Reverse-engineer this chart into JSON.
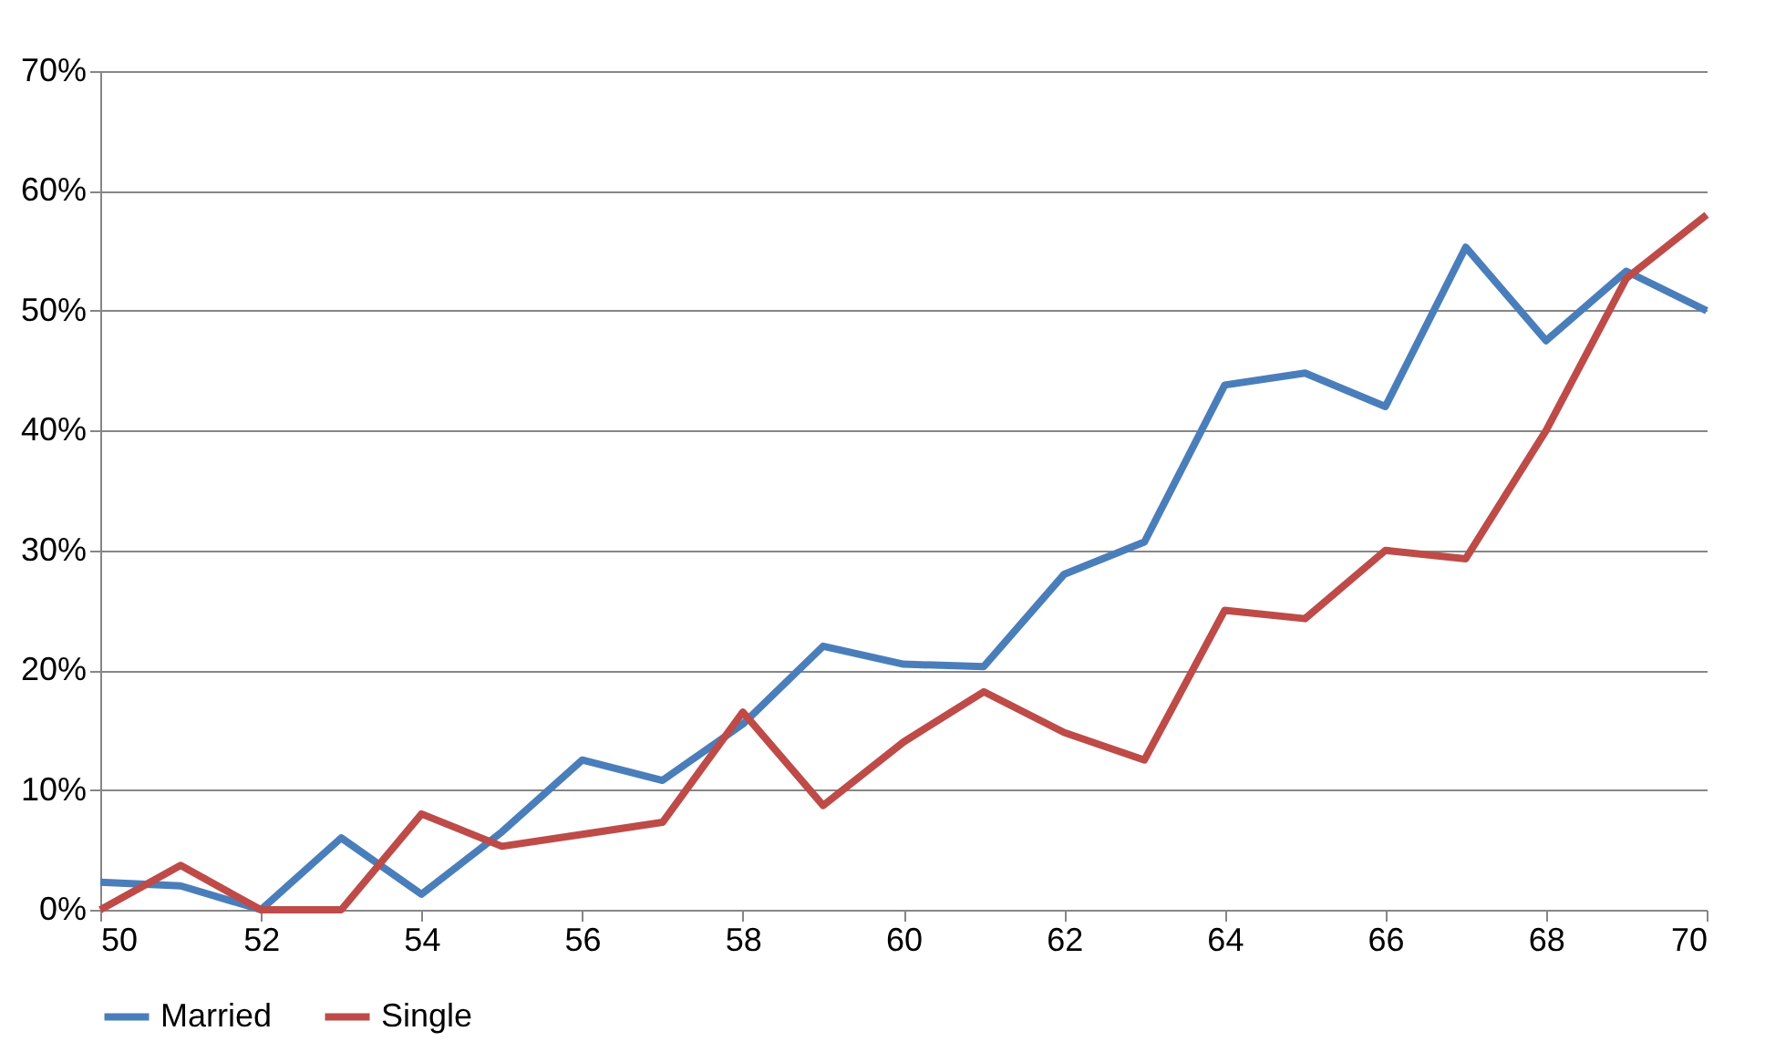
{
  "chart_data": {
    "type": "line",
    "x": [
      50,
      51,
      52,
      53,
      54,
      55,
      56,
      57,
      58,
      59,
      60,
      61,
      62,
      63,
      64,
      65,
      66,
      67,
      68,
      69,
      70
    ],
    "series": [
      {
        "name": "Married",
        "color": "#4a7ebb",
        "values": [
          2.3,
          2.0,
          0,
          6.0,
          1.3,
          6.5,
          12.5,
          10.8,
          15.5,
          22,
          20.5,
          20.3,
          28,
          30.7,
          43.8,
          44.8,
          42,
          55.3,
          47.5,
          53.3,
          50
        ]
      },
      {
        "name": "Single",
        "color": "#be4b48",
        "values": [
          0,
          3.7,
          0,
          0,
          8,
          5.3,
          6.3,
          7.3,
          16.5,
          8.7,
          14,
          18.2,
          14.8,
          12.5,
          25,
          24.3,
          30,
          29.3,
          40,
          52.7,
          58
        ]
      }
    ],
    "xlim": [
      50,
      70
    ],
    "xticks": [
      50,
      52,
      54,
      56,
      58,
      60,
      62,
      64,
      66,
      68,
      70
    ],
    "ylim": [
      0,
      70
    ],
    "yticks": [
      {
        "value": 0,
        "label": "0%"
      },
      {
        "value": 10,
        "label": "10%"
      },
      {
        "value": 20,
        "label": "20%"
      },
      {
        "value": 30,
        "label": "30%"
      },
      {
        "value": 40,
        "label": "40%"
      },
      {
        "value": 50,
        "label": "50%"
      },
      {
        "value": 60,
        "label": "60%"
      },
      {
        "value": 70,
        "label": "70%"
      }
    ],
    "grid": "y",
    "legend": "bottom",
    "marker": "none",
    "line_style": "solid"
  }
}
